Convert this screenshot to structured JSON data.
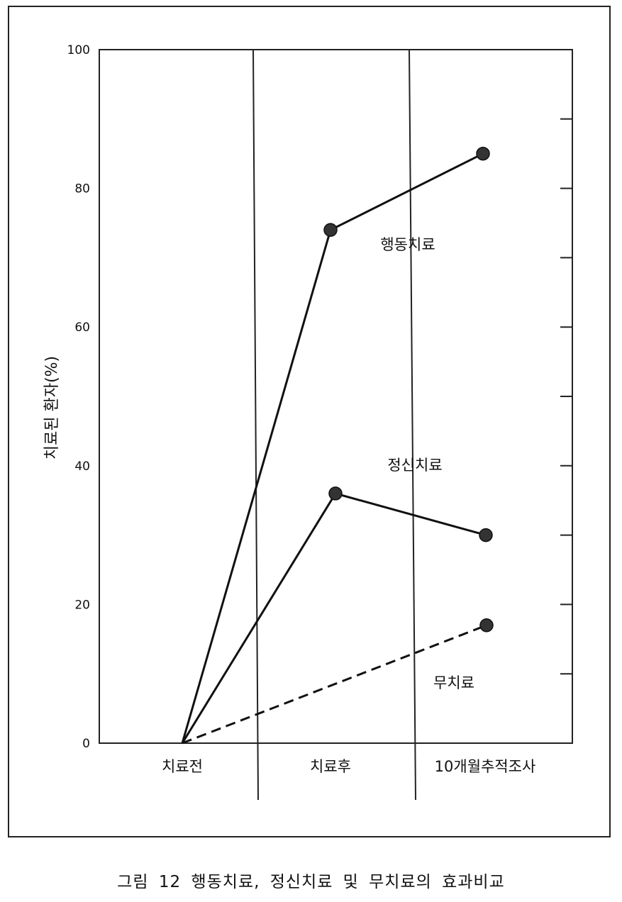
{
  "chart_data": {
    "type": "line",
    "ylabel": "치료된 환자(%)",
    "xlabel": "",
    "ylim": [
      0,
      100
    ],
    "y_ticks": [
      "0",
      "20",
      "40",
      "60",
      "80",
      "100"
    ],
    "categories": [
      "치료전",
      "치료후",
      "10개월추적조사"
    ],
    "series": [
      {
        "name": "행동치료",
        "values": [
          0,
          74,
          85
        ],
        "line_style": "solid"
      },
      {
        "name": "정신치료",
        "values": [
          0,
          36,
          30
        ],
        "line_style": "solid"
      },
      {
        "name": "무치료",
        "values": [
          0,
          null,
          17
        ],
        "line_style": "dashed"
      }
    ],
    "colors": {
      "line": "#111111",
      "marker": "#333333",
      "axis": "#222222"
    },
    "grid": false
  },
  "caption": "그림 12  행동치료, 정신치료 및 무치료의 효과비교"
}
